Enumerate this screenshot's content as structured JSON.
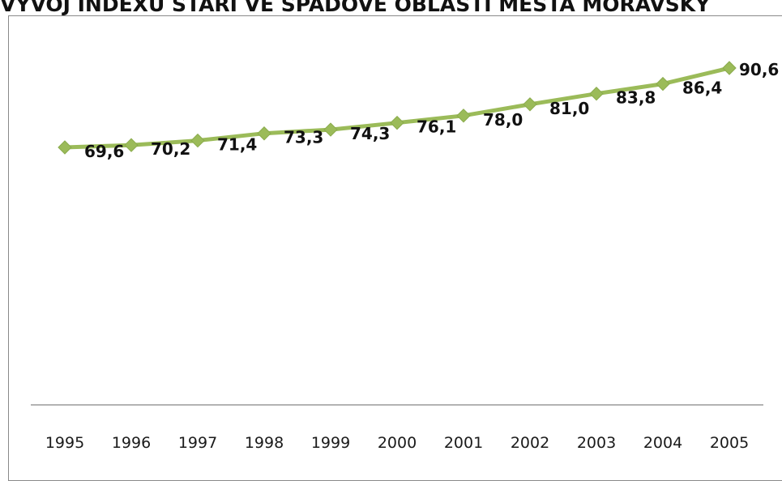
{
  "chart_data": {
    "type": "line",
    "title": "VÝVOJ INDEXU STÁŘÍ VE SPÁDOVÉ OBLASTI MĚSTA MORAVSKÝ",
    "categories": [
      "1995",
      "1996",
      "1997",
      "1998",
      "1999",
      "2000",
      "2001",
      "2002",
      "2003",
      "2004",
      "2005"
    ],
    "series": [
      {
        "values": [
          69.6,
          70.2,
          71.4,
          73.3,
          74.3,
          76.1,
          78.0,
          81.0,
          83.8,
          86.4,
          90.6
        ],
        "labels": [
          "69,6",
          "70,2",
          "71,4",
          "73,3",
          "74,3",
          "76,1",
          "78,0",
          "81,0",
          "83,8",
          "86,4",
          "90,6"
        ],
        "color": "#9bbb59",
        "marker": "diamond"
      }
    ],
    "xlabel": "",
    "ylabel": "",
    "ylim": [
      0,
      100
    ],
    "grid": false,
    "legend": "none"
  }
}
